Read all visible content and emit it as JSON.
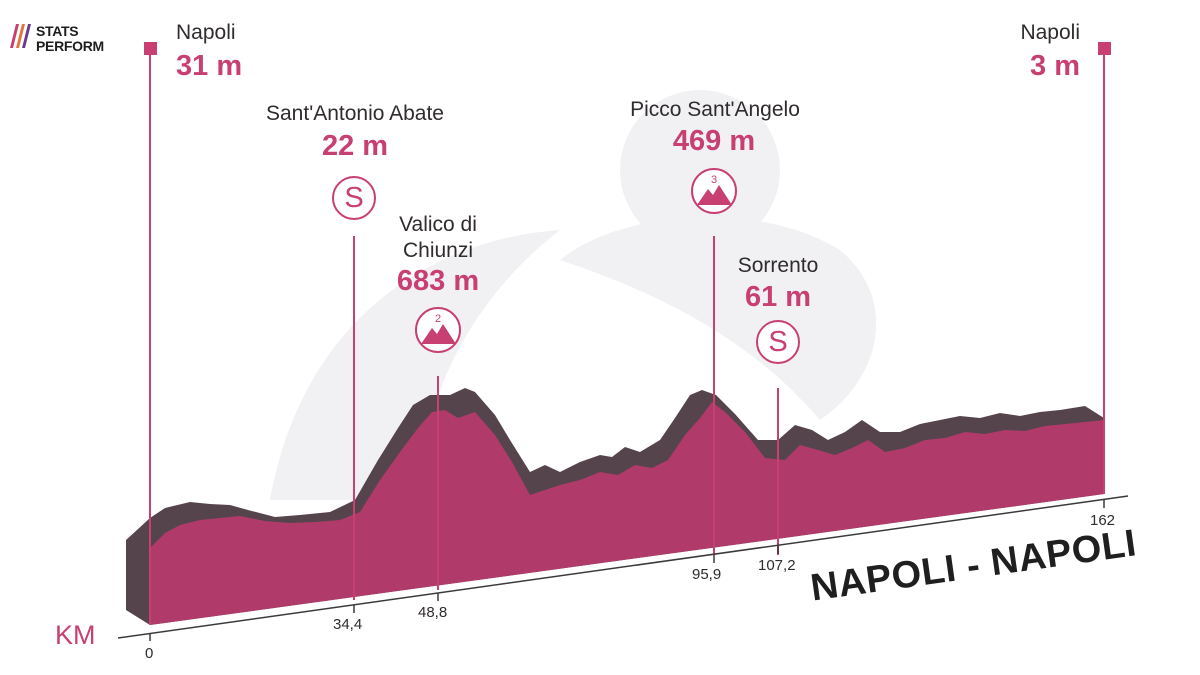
{
  "brand": {
    "line1": "STATS",
    "line2": "PERFORM"
  },
  "stage_title": "NAPOLI - NAPOLI",
  "axis_unit": "KM",
  "start": {
    "name": "Napoli",
    "altitude": "31 m",
    "km": "0"
  },
  "finish": {
    "name": "Napoli",
    "altitude": "3 m",
    "km": "162"
  },
  "points": [
    {
      "name": "Sant'Antonio Abate",
      "altitude": "22 m",
      "km": "34,4",
      "type": "sprint",
      "badge": "S"
    },
    {
      "name_line1": "Valico di",
      "name_line2": "Chiunzi",
      "altitude": "683 m",
      "km": "48,8",
      "type": "climb",
      "category": "2"
    },
    {
      "name": "Picco Sant'Angelo",
      "altitude": "469 m",
      "km": "95,9",
      "type": "climb",
      "category": "3"
    },
    {
      "name": "Sorrento",
      "altitude": "61 m",
      "km": "107,2",
      "type": "sprint",
      "badge": "S"
    }
  ],
  "colors": {
    "accent": "#c83f71",
    "profile_face": "#b03a6a",
    "profile_side": "#56444c",
    "text": "#2f2b2e"
  }
}
